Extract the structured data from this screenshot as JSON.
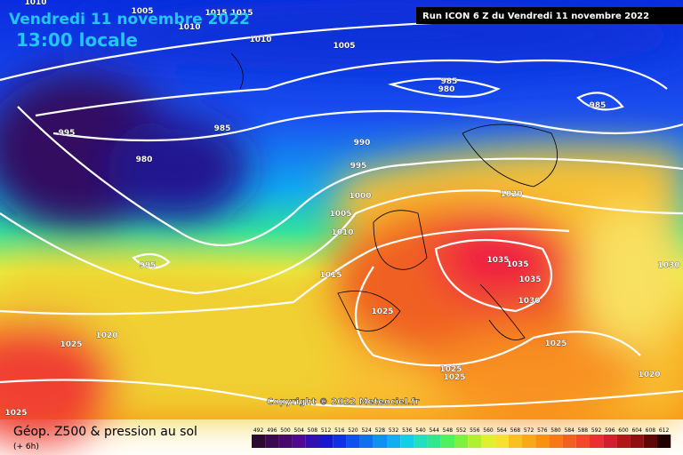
{
  "header": {
    "date": "Vendredi 11 novembre 2022",
    "time": "13:00 locale",
    "run": "Run ICON 6 Z du Vendredi 11 novembre 2022"
  },
  "copyright": "Copyright © 2022 Meteociel.fr",
  "footer": {
    "title": "Géop. Z500 & pression au sol",
    "lead": "(+ 6h)"
  },
  "isobar_labels": [
    "1010",
    "1005",
    "1015",
    "1015",
    "1010",
    "1010",
    "1005",
    "985",
    "980",
    "985",
    "995",
    "985",
    "990",
    "980",
    "995",
    "1000",
    "1020",
    "1005",
    "1010",
    "995",
    "1015",
    "1035",
    "1035",
    "1030",
    "1035",
    "1030",
    "1025",
    "1020",
    "1025",
    "1025",
    "1025",
    "1025",
    "1020",
    "1025"
  ],
  "legend": [
    492,
    496,
    500,
    504,
    508,
    512,
    516,
    520,
    524,
    528,
    532,
    536,
    540,
    544,
    548,
    552,
    556,
    560,
    564,
    568,
    572,
    576,
    580,
    584,
    588,
    592,
    596,
    600,
    604,
    608,
    612
  ]
}
